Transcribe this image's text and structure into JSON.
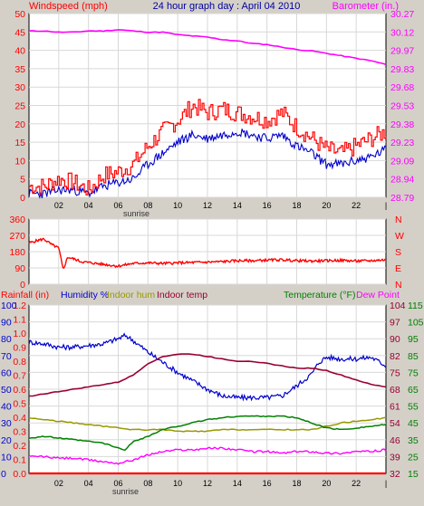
{
  "header": {
    "left_label": "Windspeed (mph)",
    "title": "24 hour graph day : April 04 2010",
    "right_label": "Barometer (in.)"
  },
  "x_axis": {
    "ticks": [
      "02",
      "04",
      "06",
      "08",
      "10",
      "12",
      "14",
      "16",
      "18",
      "20",
      "22"
    ],
    "end_tick": "|",
    "sunrise_label": "sunrise"
  },
  "colors": {
    "background": "#d4d0c8",
    "plot_bg": "#ffffff",
    "wind": "#ff0000",
    "gust": "#0000cc",
    "barometer": "#ff00ff",
    "direction": "#ff0000",
    "humidity": "#0000cc",
    "indoor_hum": "#999900",
    "indoor_temp": "#990033",
    "temperature": "#008000",
    "dew_point": "#ff00ff",
    "rainfall": "#ff0000"
  },
  "chart_data": [
    {
      "type": "line",
      "name": "wind-barometer",
      "x_range": [
        0,
        24
      ],
      "ylim_left": [
        0,
        50
      ],
      "ylim_right": [
        28.79,
        30.27
      ],
      "left_ticks": [
        "0",
        "5",
        "10",
        "15",
        "20",
        "25",
        "30",
        "35",
        "40",
        "45",
        "50"
      ],
      "right_ticks": [
        "28.79",
        "28.94",
        "29.09",
        "29.23",
        "29.38",
        "29.53",
        "29.68",
        "29.83",
        "29.97",
        "30.12",
        "30.27"
      ],
      "series": [
        {
          "axis": "left",
          "x": [
            0,
            1,
            2,
            3,
            4,
            5,
            6,
            7,
            8,
            9,
            10,
            11,
            12,
            13,
            14,
            15,
            16,
            17,
            18,
            19,
            20,
            21,
            22,
            23,
            24
          ],
          "values": [
            3,
            3,
            5,
            4,
            2,
            6,
            7,
            9,
            14,
            18,
            21,
            25,
            23,
            24,
            23,
            22,
            21,
            23,
            19,
            16,
            13,
            12,
            14,
            16,
            18
          ]
        },
        {
          "axis": "left",
          "x": [
            0,
            1,
            2,
            3,
            4,
            5,
            6,
            7,
            8,
            9,
            10,
            11,
            12,
            13,
            14,
            15,
            16,
            17,
            18,
            19,
            20,
            21,
            22,
            23,
            24
          ],
          "values": [
            1,
            1,
            2,
            2,
            1,
            3,
            4,
            5,
            9,
            12,
            15,
            17,
            16,
            17,
            18,
            17,
            16,
            17,
            14,
            12,
            9,
            9,
            10,
            11,
            13
          ]
        },
        {
          "axis": "right",
          "x": [
            0,
            1,
            2,
            3,
            4,
            5,
            6,
            7,
            8,
            9,
            10,
            11,
            12,
            13,
            14,
            15,
            16,
            17,
            18,
            19,
            20,
            21,
            22,
            23,
            24
          ],
          "values": [
            30.13,
            30.13,
            30.12,
            30.12,
            30.13,
            30.13,
            30.14,
            30.13,
            30.12,
            30.12,
            30.1,
            30.09,
            30.08,
            30.06,
            30.05,
            30.03,
            30.02,
            30.0,
            29.98,
            29.97,
            29.95,
            29.93,
            29.91,
            29.89,
            29.86
          ]
        }
      ]
    },
    {
      "type": "line",
      "name": "wind-direction",
      "x_range": [
        0,
        24
      ],
      "ylim_left": [
        0,
        360
      ],
      "left_ticks": [
        "0",
        "90",
        "180",
        "270",
        "360"
      ],
      "right_labels": [
        "N",
        "W",
        "S",
        "E",
        "N"
      ],
      "series": [
        {
          "x": [
            0,
            0.5,
            1,
            1.5,
            2,
            2.3,
            2.6,
            3,
            3.5,
            4,
            5,
            6,
            7,
            8,
            9,
            10,
            11,
            12,
            13,
            14,
            15,
            16,
            17,
            18,
            19,
            20,
            21,
            22,
            23,
            24
          ],
          "values": [
            228,
            240,
            250,
            220,
            200,
            80,
            150,
            140,
            125,
            120,
            110,
            100,
            115,
            118,
            115,
            118,
            120,
            122,
            125,
            130,
            130,
            133,
            135,
            130,
            128,
            130,
            132,
            128,
            130,
            135
          ]
        }
      ]
    },
    {
      "type": "line",
      "name": "rain-humidity-temperature",
      "x_range": [
        0,
        24
      ],
      "ylim_left": [
        0,
        1.2
      ],
      "ylim_right": [
        32,
        115
      ],
      "left_ticks_rain": [
        "0.0",
        "0.1",
        "0.2",
        "0.3",
        "0.4",
        "0.5",
        "0.6",
        "0.7",
        "0.8",
        "0.9",
        "1.0",
        "1.1",
        "1.2"
      ],
      "left_ticks_humidity": [
        "0",
        "10",
        "20",
        "30",
        "40",
        "50",
        "60",
        "70",
        "80",
        "90",
        "100"
      ],
      "right_ticks_a": [
        "32",
        "39",
        "46",
        "54",
        "61",
        "68",
        "75",
        "82",
        "90",
        "97",
        "104"
      ],
      "right_ticks_b": [
        "15",
        "25",
        "35",
        "45",
        "55",
        "65",
        "75",
        "85",
        "95",
        "105",
        "115"
      ],
      "legend": [
        "Rainfall (in)",
        "Humidity %",
        "Indoor hum",
        "Indoor temp",
        "Temperature (°F)",
        "Dew Point"
      ],
      "series": [
        {
          "name": "Humidity %",
          "axis": "humidity",
          "x": [
            0,
            1,
            2,
            3,
            4,
            5,
            6,
            6.5,
            7,
            8,
            9,
            10,
            11,
            12,
            13,
            14,
            15,
            16,
            17,
            18,
            19,
            19.5,
            20,
            21,
            22,
            23,
            24
          ],
          "values": [
            78,
            77,
            75,
            75,
            76,
            77,
            80,
            82,
            79,
            72,
            66,
            60,
            55,
            50,
            46,
            45,
            45,
            45,
            46,
            52,
            59,
            66,
            69,
            68,
            68,
            69,
            64
          ]
        },
        {
          "name": "Indoor temp",
          "axis": "right_a",
          "x": [
            0,
            1,
            2,
            3,
            4,
            5,
            6,
            7,
            8,
            9,
            10,
            11,
            12,
            13,
            14,
            15,
            16,
            17,
            18,
            19,
            20,
            21,
            22,
            23,
            24
          ],
          "values": [
            65,
            66,
            67,
            68,
            69,
            70,
            71,
            74,
            79,
            82,
            83,
            83,
            82,
            81,
            80,
            80,
            79,
            78,
            77,
            77,
            76,
            74,
            72,
            70,
            69
          ]
        },
        {
          "name": "Indoor hum",
          "axis": "humidity",
          "x": [
            0,
            1,
            2,
            3,
            4,
            5,
            6,
            7,
            8,
            9,
            10,
            11,
            12,
            13,
            14,
            15,
            16,
            17,
            18,
            19,
            20,
            21,
            22,
            23,
            24
          ],
          "values": [
            33,
            32,
            31,
            30,
            29,
            28,
            27,
            26,
            26,
            26,
            25,
            25,
            25,
            26,
            26,
            26,
            26,
            26,
            26,
            26,
            28,
            30,
            31,
            32,
            33
          ]
        },
        {
          "name": "Temperature (°F)",
          "axis": "right_b",
          "x": [
            0,
            1,
            2,
            3,
            4,
            5,
            6,
            6.5,
            7,
            8,
            9,
            10,
            11,
            12,
            13,
            14,
            15,
            16,
            17,
            18,
            19,
            20,
            21,
            22,
            23,
            24
          ],
          "values": [
            36,
            37,
            36,
            35,
            34,
            33,
            30,
            29,
            34,
            37,
            41,
            43,
            45,
            47,
            48,
            49,
            49,
            49,
            49,
            48,
            45,
            42,
            41,
            42,
            43,
            44
          ]
        },
        {
          "name": "Dew Point",
          "axis": "right_b",
          "x": [
            0,
            1,
            2,
            3,
            4,
            5,
            6,
            7,
            8,
            9,
            10,
            11,
            12,
            13,
            14,
            15,
            16,
            17,
            18,
            19,
            20,
            21,
            22,
            23,
            24
          ],
          "values": [
            25,
            25,
            24,
            24,
            23,
            22,
            21,
            23,
            26,
            28,
            29,
            29,
            30,
            30,
            29,
            28,
            28,
            27,
            28,
            28,
            27,
            27,
            28,
            28,
            29
          ]
        },
        {
          "name": "Rainfall (in)",
          "axis": "rain",
          "x": [
            0,
            24
          ],
          "values": [
            0,
            0
          ]
        }
      ]
    }
  ]
}
